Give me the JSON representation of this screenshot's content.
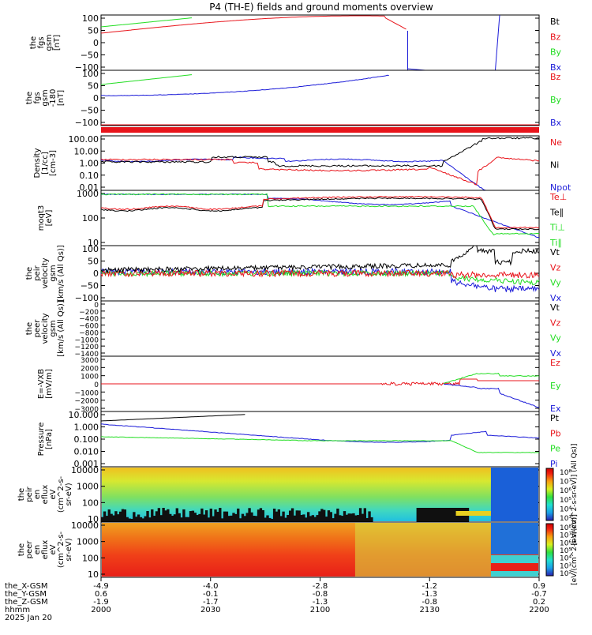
{
  "title": "P4 (TH-E) fields and ground moments overview",
  "colors": {
    "black": "#000000",
    "red": "#e8141b",
    "green": "#22dd22",
    "blue": "#1a1ad8"
  },
  "chart_data": [
    {
      "type": "line",
      "ylabel": [
        "the",
        "fgs",
        "gsm",
        "[nT]"
      ],
      "yticks": [
        "100",
        "50",
        "0",
        "−50",
        "−100"
      ],
      "ylim": [
        -100,
        110
      ],
      "legend": [
        {
          "name": "Bt",
          "color": "black"
        },
        {
          "name": "Bz",
          "color": "red"
        },
        {
          "name": "By",
          "color": "green"
        },
        {
          "name": "Bx",
          "color": "blue"
        }
      ]
    },
    {
      "type": "line",
      "ylabel": [
        "the",
        "fgs",
        "gsm",
        "-180",
        "[nT]"
      ],
      "yticks": [
        "100",
        "50",
        "0",
        "−50",
        "−100"
      ],
      "ylim": [
        -130,
        130
      ],
      "legend": [
        {
          "name": "Bz",
          "color": "red"
        },
        {
          "name": "By",
          "color": "green"
        },
        {
          "name": "Bx",
          "color": "blue"
        }
      ]
    },
    {
      "type": "bar",
      "note": "red quality strip"
    },
    {
      "type": "line",
      "log": true,
      "ylabel": [
        "Density",
        "[1/cc]",
        "[cm-3]"
      ],
      "yticks": [
        "100.00",
        "10.00",
        "1.00",
        "0.10",
        "0.01"
      ],
      "legend": [
        {
          "name": "Ne",
          "color": "red"
        },
        {
          "name": "Ni",
          "color": "black"
        },
        {
          "name": "Npot",
          "color": "blue"
        }
      ]
    },
    {
      "type": "line",
      "log": true,
      "ylabel": [
        "moqt3",
        "[eV]"
      ],
      "yticks": [
        "1000",
        "100",
        "10"
      ],
      "legend": [
        {
          "name": "Te⊥",
          "color": "red"
        },
        {
          "name": "Te∥",
          "color": "black"
        },
        {
          "name": "Ti⊥",
          "color": "green"
        },
        {
          "name": "Ti∥",
          "color": "green"
        }
      ]
    },
    {
      "type": "line",
      "ylabel": [
        "the",
        "peir",
        "velocity",
        "gsm",
        "[km/s (All Qs)]"
      ],
      "yticks": [
        "100",
        "50",
        "0",
        "−50",
        "−100"
      ],
      "legend": [
        {
          "name": "Vt",
          "color": "black"
        },
        {
          "name": "Vz",
          "color": "red"
        },
        {
          "name": "Vy",
          "color": "green"
        },
        {
          "name": "Vx",
          "color": "blue"
        }
      ]
    },
    {
      "type": "line",
      "ylabel": [
        "the",
        "peer",
        "velocity",
        "gsm",
        "[km/s (All Qs)]"
      ],
      "yticks": [
        "0",
        "−200",
        "−400",
        "−600",
        "−800",
        "−1000",
        "−1200",
        "−1400"
      ],
      "legend": [
        {
          "name": "Vt",
          "color": "black"
        },
        {
          "name": "Vz",
          "color": "red"
        },
        {
          "name": "Vy",
          "color": "green"
        },
        {
          "name": "Vx",
          "color": "blue"
        }
      ]
    },
    {
      "type": "line",
      "ylabel": [
        "E=-VXB",
        "[mV/m]"
      ],
      "yticks": [
        "3000",
        "2000",
        "1000",
        "0",
        "−1000",
        "−2000",
        "−3000"
      ],
      "legend": [
        {
          "name": "Ez",
          "color": "red"
        },
        {
          "name": "Ey",
          "color": "green"
        },
        {
          "name": "Ex",
          "color": "blue"
        }
      ]
    },
    {
      "type": "line",
      "log": true,
      "ylabel": [
        "Pressure",
        "[nPa]"
      ],
      "yticks": [
        "10.000",
        "1.000",
        "0.100",
        "0.010",
        "0.001"
      ],
      "legend": [
        {
          "name": "Pt",
          "color": "black"
        },
        {
          "name": "Pb",
          "color": "red"
        },
        {
          "name": "Pe",
          "color": "green"
        },
        {
          "name": "Pi",
          "color": "blue"
        }
      ]
    },
    {
      "type": "heatmap",
      "ylabel": [
        "the",
        "peir",
        "en",
        "eflux",
        "eV",
        "(cm^2-s-",
        "sr-eV)"
      ],
      "yticks": [
        "10000",
        "1000",
        "100",
        "10"
      ]
    },
    {
      "type": "heatmap",
      "ylabel": [
        "the",
        "peer",
        "en",
        "eflux",
        "eV",
        "(cm^2-s-",
        "sr-eV)"
      ],
      "yticks": [
        "10000",
        "1000",
        "100",
        "10"
      ]
    }
  ],
  "colorbar1": {
    "ticks": [
      "10⁸",
      "10⁷",
      "10⁶",
      "10⁵",
      "10⁴",
      "10³"
    ],
    "label": "[eV/(cm^2-s-sr-eV)] (All Qs)]"
  },
  "colorbar2": {
    "ticks": [
      "10⁸",
      "10⁷",
      "10⁶",
      "10⁵",
      "10⁴",
      "10³",
      "10²"
    ],
    "label": "[eV/(cm^2-s-sr-eV)]"
  },
  "xaxis": {
    "row_labels": [
      "the_X-GSM",
      "the_Y-GSM",
      "the_Z-GSM",
      "hhmm",
      "2025 Jan 20"
    ],
    "columns": [
      [
        "-4.9",
        "0.6",
        "-1.9",
        "2000"
      ],
      [
        "-4.0",
        "-0.1",
        "-1.7",
        "2030"
      ],
      [
        "-2.8",
        "-0.8",
        "-1.3",
        "2100"
      ],
      [
        "-1.2",
        "-1.3",
        "-0.8",
        "2130"
      ],
      [
        "0.9",
        "-0.7",
        "0.2",
        "2200"
      ]
    ]
  }
}
